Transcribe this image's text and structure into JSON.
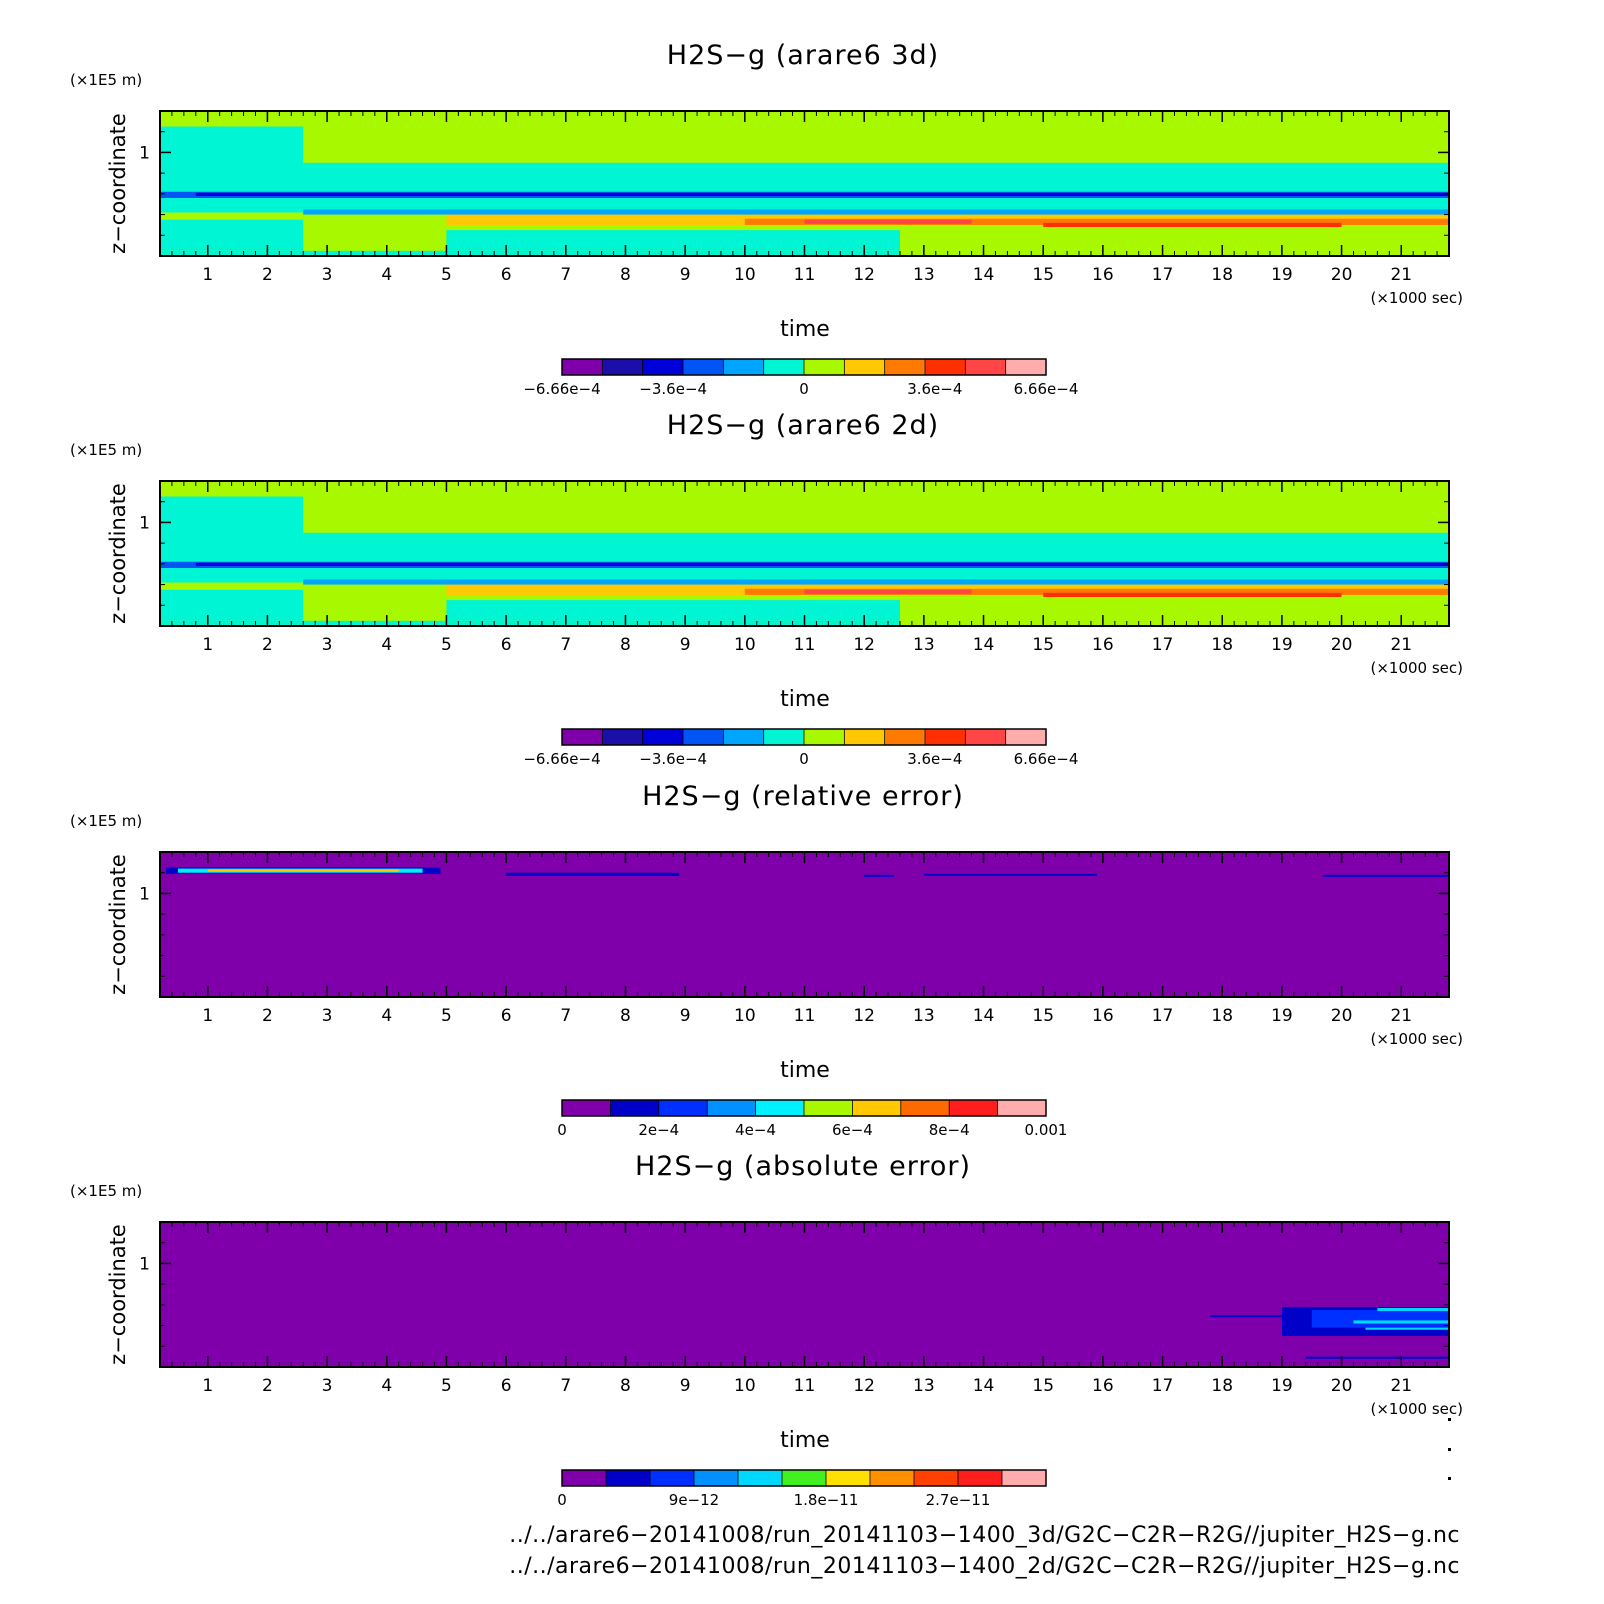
{
  "chart_data": [
    {
      "type": "heatmap",
      "title": "H2S−g (arare6 3d)",
      "ylabel": "z−coordinate",
      "yunit": "(×1E5 m)",
      "xlabel": "time",
      "xunit": "(×1000 sec)",
      "xlim": [
        0.2,
        21.8
      ],
      "x_ticks": [
        1,
        2,
        3,
        4,
        5,
        6,
        7,
        8,
        9,
        10,
        11,
        12,
        13,
        14,
        15,
        16,
        17,
        18,
        19,
        20,
        21
      ],
      "y_ticks": [
        1
      ],
      "ylim": [
        0,
        1.4
      ],
      "colorbar": {
        "min": -0.000666,
        "max": 0.000666,
        "colors": [
          "#7f00aa",
          "#1c0ea8",
          "#0000d8",
          "#0055f4",
          "#00a5ff",
          "#00f5d5",
          "#a8f800",
          "#ffc800",
          "#ff7a00",
          "#ff3000",
          "#ff4545",
          "#ffacac"
        ],
        "labels": [
          "−6.66e−4",
          "−3.6e−4",
          "0",
          "3.6e−4",
          "6.66e−4"
        ],
        "label_values": [
          -0.000666,
          -0.00036,
          0,
          0.00036,
          0.000666
        ]
      },
      "regions": [
        {
          "t": [
            0.2,
            21.8
          ],
          "z": [
            0.0,
            1.4
          ],
          "v": 3e-05
        },
        {
          "t": [
            0.2,
            12.6
          ],
          "z": [
            0.0,
            0.05
          ],
          "v": -3e-05
        },
        {
          "t": [
            0.2,
            2.6
          ],
          "z": [
            0.05,
            1.25
          ],
          "v": -3e-05
        },
        {
          "t": [
            2.6,
            21.8
          ],
          "z": [
            0.83,
            0.9
          ],
          "v": -3e-05
        },
        {
          "t": [
            0.2,
            21.8
          ],
          "z": [
            0.45,
            0.83
          ],
          "v": -3e-05
        },
        {
          "t": [
            0.2,
            21.8
          ],
          "z": [
            0.56,
            0.62
          ],
          "v": -0.00025
        },
        {
          "t": [
            0.8,
            21.8
          ],
          "z": [
            0.58,
            0.61
          ],
          "v": -0.0004
        },
        {
          "t": [
            5.0,
            12.6
          ],
          "z": [
            0.05,
            0.25
          ],
          "v": -3e-05
        },
        {
          "t": [
            0.2,
            2.6
          ],
          "z": [
            0.35,
            0.42
          ],
          "v": 3e-05
        },
        {
          "t": [
            5.0,
            21.8
          ],
          "z": [
            0.3,
            0.4
          ],
          "v": 0.0002
        },
        {
          "t": [
            10.0,
            21.8
          ],
          "z": [
            0.3,
            0.36
          ],
          "v": 0.0003
        },
        {
          "t": [
            11.0,
            13.8
          ],
          "z": [
            0.31,
            0.35
          ],
          "v": 0.0005
        },
        {
          "t": [
            15.0,
            20.0
          ],
          "z": [
            0.28,
            0.32
          ],
          "v": 0.0004
        },
        {
          "t": [
            2.6,
            21.8
          ],
          "z": [
            0.4,
            0.45
          ],
          "v": -0.00015
        }
      ]
    },
    {
      "type": "heatmap",
      "title": "H2S−g (arare6 2d)",
      "ylabel": "z−coordinate",
      "yunit": "(×1E5 m)",
      "xlabel": "time",
      "xunit": "(×1000 sec)",
      "xlim": [
        0.2,
        21.8
      ],
      "x_ticks": [
        1,
        2,
        3,
        4,
        5,
        6,
        7,
        8,
        9,
        10,
        11,
        12,
        13,
        14,
        15,
        16,
        17,
        18,
        19,
        20,
        21
      ],
      "y_ticks": [
        1
      ],
      "ylim": [
        0,
        1.4
      ],
      "colorbar": {
        "min": -0.000666,
        "max": 0.000666,
        "colors": [
          "#7f00aa",
          "#1c0ea8",
          "#0000d8",
          "#0055f4",
          "#00a5ff",
          "#00f5d5",
          "#a8f800",
          "#ffc800",
          "#ff7a00",
          "#ff3000",
          "#ff4545",
          "#ffacac"
        ],
        "labels": [
          "−6.66e−4",
          "−3.6e−4",
          "0",
          "3.6e−4",
          "6.66e−4"
        ],
        "label_values": [
          -0.000666,
          -0.00036,
          0,
          0.00036,
          0.000666
        ]
      },
      "regions": [
        {
          "t": [
            0.2,
            21.8
          ],
          "z": [
            0.0,
            1.4
          ],
          "v": 3e-05
        },
        {
          "t": [
            0.2,
            12.6
          ],
          "z": [
            0.0,
            0.05
          ],
          "v": -3e-05
        },
        {
          "t": [
            0.2,
            2.6
          ],
          "z": [
            0.05,
            1.25
          ],
          "v": -3e-05
        },
        {
          "t": [
            2.6,
            21.8
          ],
          "z": [
            0.83,
            0.9
          ],
          "v": -3e-05
        },
        {
          "t": [
            0.2,
            21.8
          ],
          "z": [
            0.45,
            0.83
          ],
          "v": -3e-05
        },
        {
          "t": [
            0.2,
            21.8
          ],
          "z": [
            0.56,
            0.62
          ],
          "v": -0.00025
        },
        {
          "t": [
            0.8,
            21.8
          ],
          "z": [
            0.58,
            0.61
          ],
          "v": -0.0004
        },
        {
          "t": [
            5.0,
            12.6
          ],
          "z": [
            0.05,
            0.25
          ],
          "v": -3e-05
        },
        {
          "t": [
            0.2,
            2.6
          ],
          "z": [
            0.35,
            0.42
          ],
          "v": 3e-05
        },
        {
          "t": [
            5.0,
            21.8
          ],
          "z": [
            0.3,
            0.4
          ],
          "v": 0.0002
        },
        {
          "t": [
            10.0,
            21.8
          ],
          "z": [
            0.3,
            0.36
          ],
          "v": 0.0003
        },
        {
          "t": [
            11.0,
            13.8
          ],
          "z": [
            0.31,
            0.35
          ],
          "v": 0.0005
        },
        {
          "t": [
            15.0,
            20.0
          ],
          "z": [
            0.28,
            0.32
          ],
          "v": 0.0004
        },
        {
          "t": [
            2.6,
            21.8
          ],
          "z": [
            0.4,
            0.45
          ],
          "v": -0.00015
        }
      ]
    },
    {
      "type": "heatmap",
      "title": "H2S−g (relative error)",
      "ylabel": "z−coordinate",
      "yunit": "(×1E5 m)",
      "xlabel": "time",
      "xunit": "(×1000 sec)",
      "xlim": [
        0.2,
        21.8
      ],
      "x_ticks": [
        1,
        2,
        3,
        4,
        5,
        6,
        7,
        8,
        9,
        10,
        11,
        12,
        13,
        14,
        15,
        16,
        17,
        18,
        19,
        20,
        21
      ],
      "y_ticks": [
        1
      ],
      "ylim": [
        0,
        1.4
      ],
      "colorbar": {
        "min": 0,
        "max": 0.001,
        "colors": [
          "#7f00aa",
          "#0000c8",
          "#0030ff",
          "#0090ff",
          "#00f0ff",
          "#a8f800",
          "#ffc800",
          "#ff6a00",
          "#ff1e1e",
          "#ffacac"
        ],
        "labels": [
          "0",
          "2e−4",
          "4e−4",
          "6e−4",
          "8e−4",
          "0.001"
        ],
        "label_values": [
          0,
          0.0002,
          0.0004,
          0.0006,
          0.0008,
          0.001
        ]
      },
      "regions": [
        {
          "t": [
            0.2,
            21.8
          ],
          "z": [
            0.0,
            1.4
          ],
          "v": 1e-05
        },
        {
          "t": [
            0.3,
            4.9
          ],
          "z": [
            1.19,
            1.25
          ],
          "v": 0.00015
        },
        {
          "t": [
            0.5,
            4.6
          ],
          "z": [
            1.2,
            1.24
          ],
          "v": 0.0004
        },
        {
          "t": [
            1.0,
            4.2
          ],
          "z": [
            1.21,
            1.23
          ],
          "v": 0.00065
        },
        {
          "t": [
            6.0,
            8.9
          ],
          "z": [
            1.17,
            1.2
          ],
          "v": 0.00015
        },
        {
          "t": [
            12.0,
            12.5
          ],
          "z": [
            1.16,
            1.18
          ],
          "v": 0.00015
        },
        {
          "t": [
            13.0,
            15.9
          ],
          "z": [
            1.17,
            1.19
          ],
          "v": 0.00015
        },
        {
          "t": [
            19.7,
            21.8
          ],
          "z": [
            1.16,
            1.18
          ],
          "v": 0.00015
        }
      ]
    },
    {
      "type": "heatmap",
      "title": "H2S−g (absolute error)",
      "ylabel": "z−coordinate",
      "yunit": "(×1E5 m)",
      "xlabel": "time",
      "xunit": "(×1000 sec)",
      "xlim": [
        0.2,
        21.8
      ],
      "x_ticks": [
        1,
        2,
        3,
        4,
        5,
        6,
        7,
        8,
        9,
        10,
        11,
        12,
        13,
        14,
        15,
        16,
        17,
        18,
        19,
        20,
        21
      ],
      "y_ticks": [
        1
      ],
      "ylim": [
        0,
        1.4
      ],
      "colorbar": {
        "min": 0,
        "max": 3.3e-11,
        "colors": [
          "#7f00aa",
          "#0000c8",
          "#0030ff",
          "#0090ff",
          "#00d8ff",
          "#40f020",
          "#ffe000",
          "#ff9000",
          "#ff4000",
          "#ff1e1e",
          "#ffacac"
        ],
        "labels": [
          "0",
          "9e−12",
          "1.8e−11",
          "2.7e−11"
        ],
        "label_values": [
          0,
          9e-12,
          1.8e-11,
          2.7e-11
        ]
      },
      "regions": [
        {
          "t": [
            0.2,
            21.8
          ],
          "z": [
            0.0,
            1.4
          ],
          "v": 1e-13
        },
        {
          "t": [
            17.8,
            21.8
          ],
          "z": [
            0.48,
            0.5
          ],
          "v": 4e-12
        },
        {
          "t": [
            19.0,
            21.8
          ],
          "z": [
            0.3,
            0.58
          ],
          "v": 4e-12
        },
        {
          "t": [
            19.5,
            21.8
          ],
          "z": [
            0.38,
            0.55
          ],
          "v": 7e-12
        },
        {
          "t": [
            20.6,
            21.8
          ],
          "z": [
            0.54,
            0.57
          ],
          "v": 1.4e-11
        },
        {
          "t": [
            20.2,
            21.8
          ],
          "z": [
            0.42,
            0.45
          ],
          "v": 1.2e-11
        },
        {
          "t": [
            20.4,
            21.8
          ],
          "z": [
            0.36,
            0.38
          ],
          "v": 1.4e-11
        },
        {
          "t": [
            19.4,
            21.8
          ],
          "z": [
            0.08,
            0.1
          ],
          "v": 4e-12
        }
      ]
    }
  ],
  "footer": {
    "line1": "../../arare6−20141008/run_20141103−1400_3d/G2C−C2R−R2G//jupiter_H2S−g.nc",
    "line2": "../../arare6−20141008/run_20141103−1400_2d/G2C−C2R−R2G//jupiter_H2S−g.nc"
  }
}
